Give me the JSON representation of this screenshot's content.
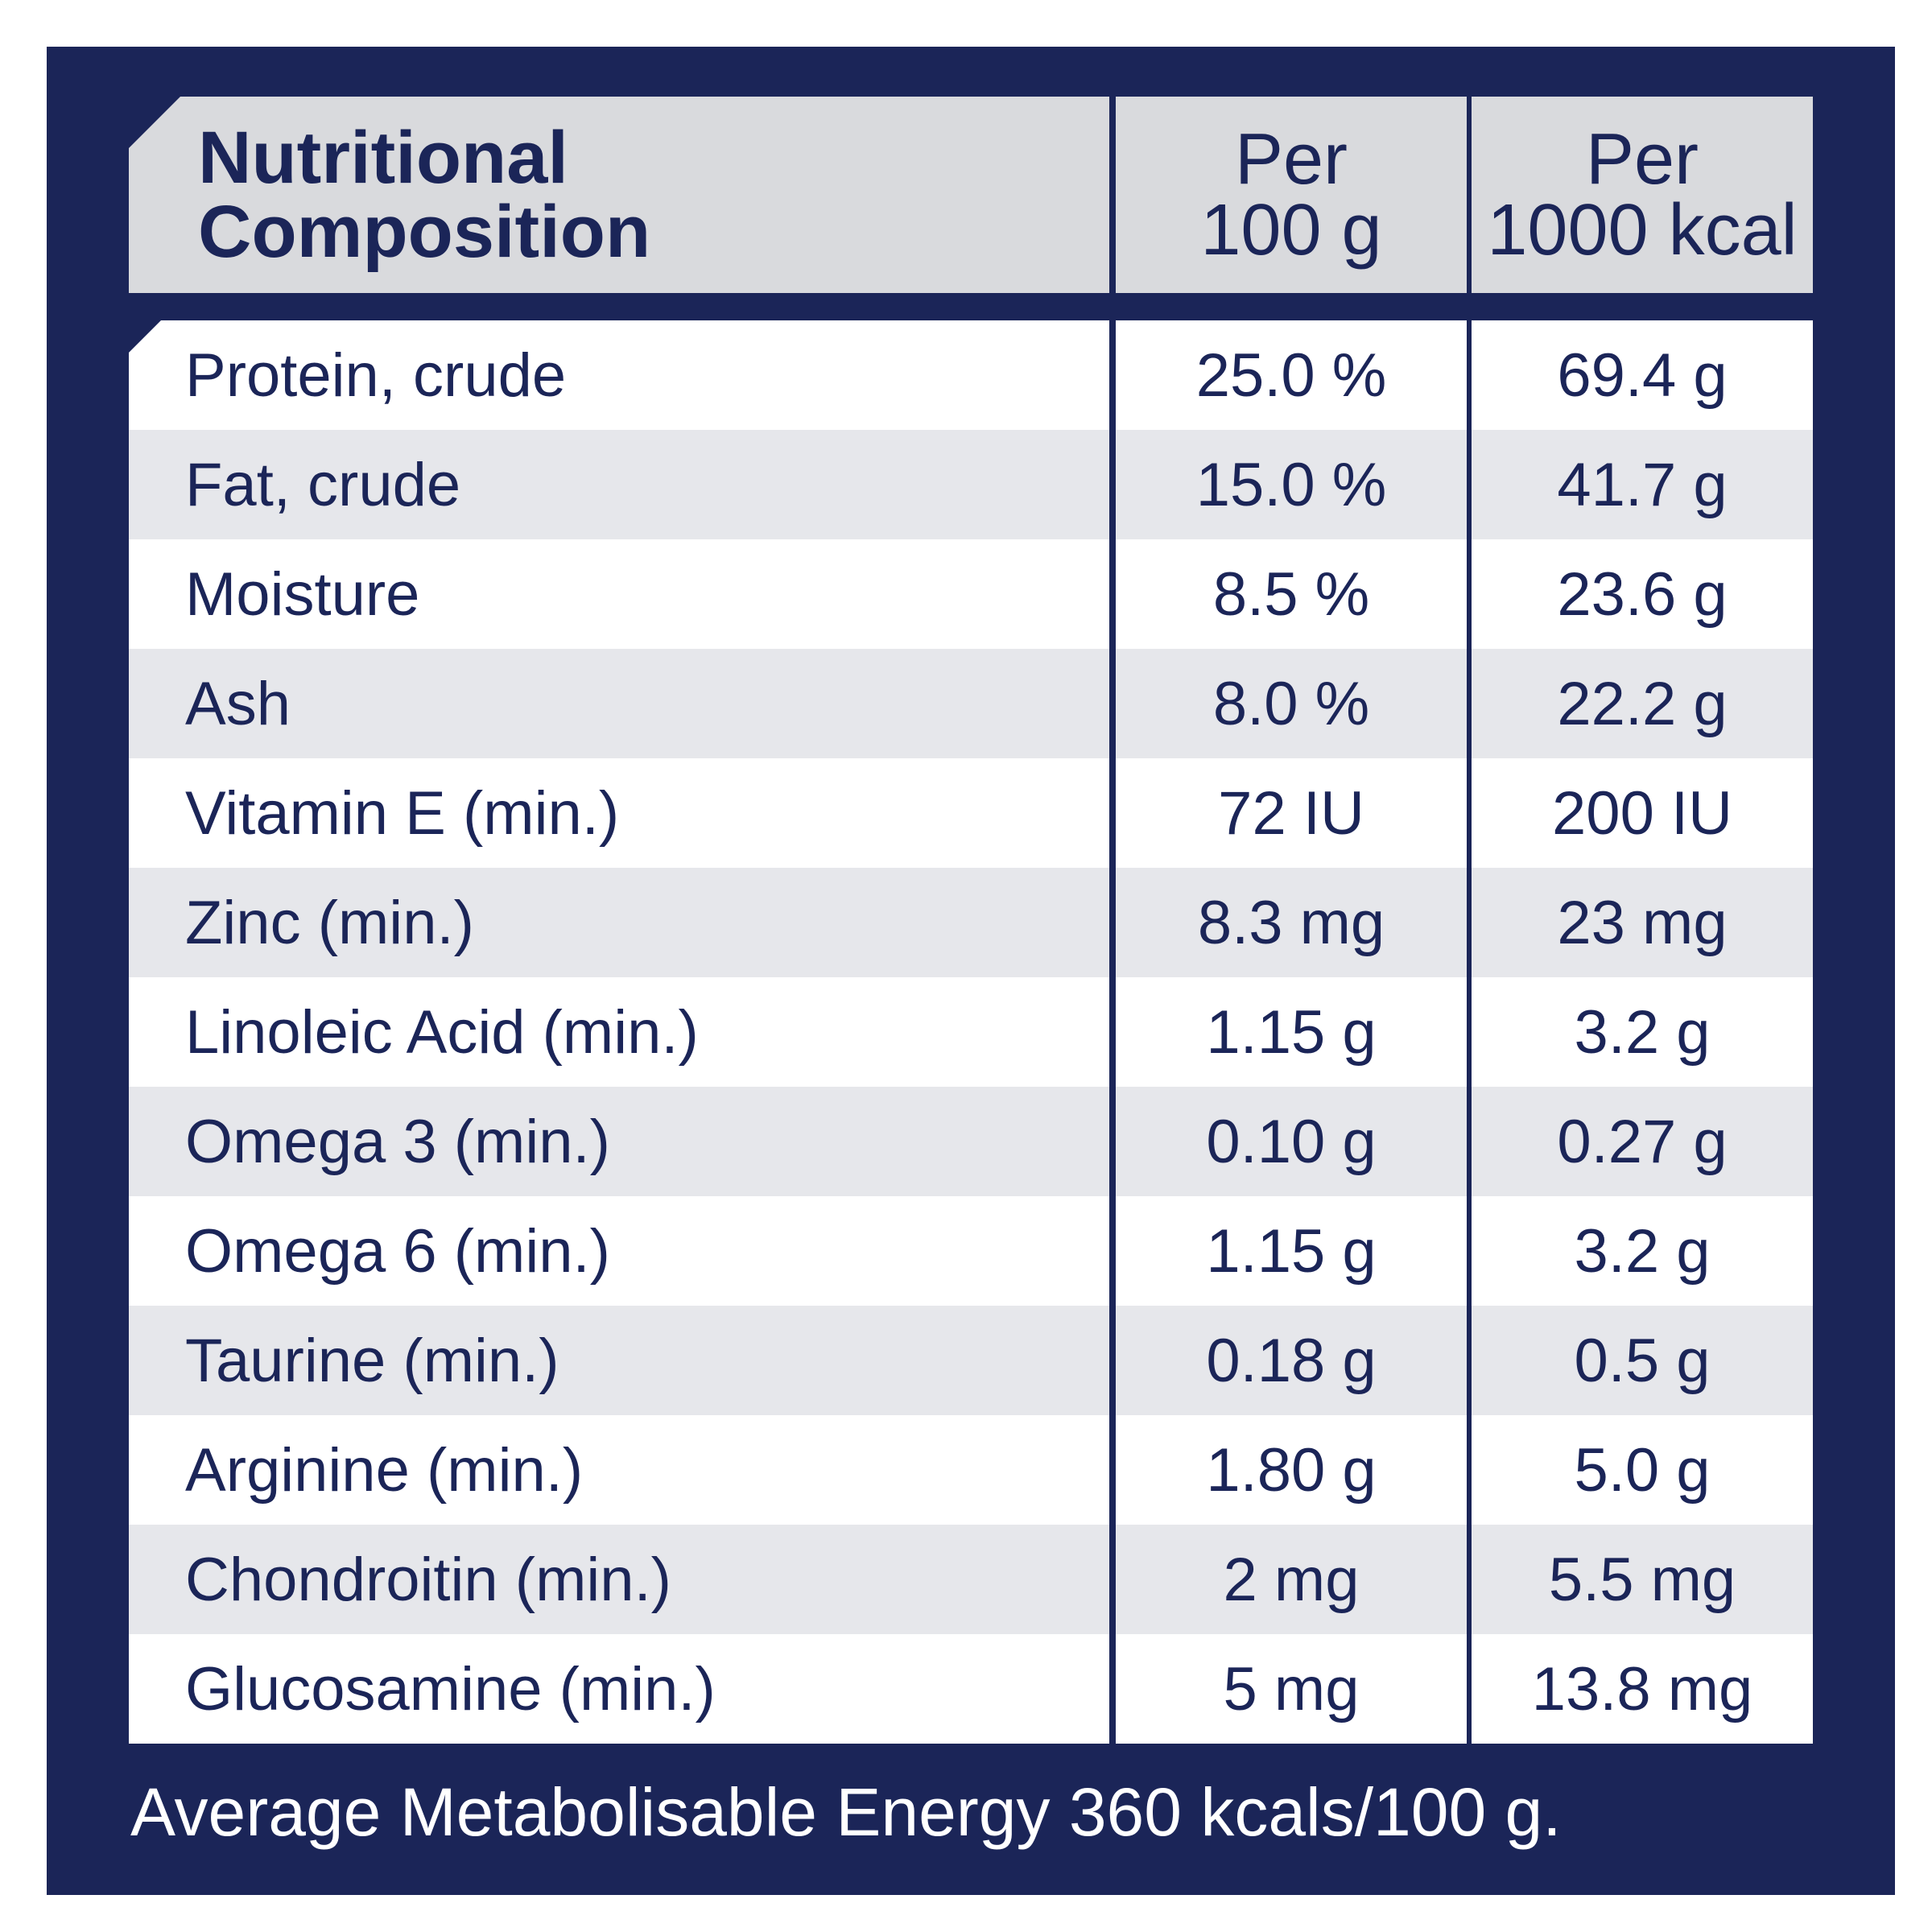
{
  "header": {
    "title_line1": "Nutritional",
    "title_line2": "Composition",
    "col1_line1": "Per",
    "col1_line2": "100 g",
    "col2_line1": "Per",
    "col2_line2": "1000 kcal"
  },
  "rows": [
    {
      "name": "Protein, crude",
      "per100g": "25.0 %",
      "per1000kcal": "69.4 g"
    },
    {
      "name": "Fat, crude",
      "per100g": "15.0 %",
      "per1000kcal": "41.7 g"
    },
    {
      "name": "Moisture",
      "per100g": "8.5 %",
      "per1000kcal": "23.6 g"
    },
    {
      "name": "Ash",
      "per100g": "8.0 %",
      "per1000kcal": "22.2 g"
    },
    {
      "name": "Vitamin E (min.)",
      "per100g": "72 IU",
      "per1000kcal": "200 IU"
    },
    {
      "name": "Zinc (min.)",
      "per100g": "8.3 mg",
      "per1000kcal": "23 mg"
    },
    {
      "name": "Linoleic Acid (min.)",
      "per100g": "1.15 g",
      "per1000kcal": "3.2 g"
    },
    {
      "name": "Omega 3 (min.)",
      "per100g": "0.10 g",
      "per1000kcal": "0.27 g"
    },
    {
      "name": "Omega 6 (min.)",
      "per100g": "1.15 g",
      "per1000kcal": "3.2 g"
    },
    {
      "name": "Taurine (min.)",
      "per100g": "0.18 g",
      "per1000kcal": "0.5 g"
    },
    {
      "name": "Arginine (min.)",
      "per100g": "1.80 g",
      "per1000kcal": "5.0 g"
    },
    {
      "name": "Chondroitin (min.)",
      "per100g": "2 mg",
      "per1000kcal": "5.5 mg"
    },
    {
      "name": "Glucosamine (min.)",
      "per100g": "5 mg",
      "per1000kcal": "13.8 mg"
    }
  ],
  "footnote": "Average Metabolisable Energy 360 kcals/100 g."
}
